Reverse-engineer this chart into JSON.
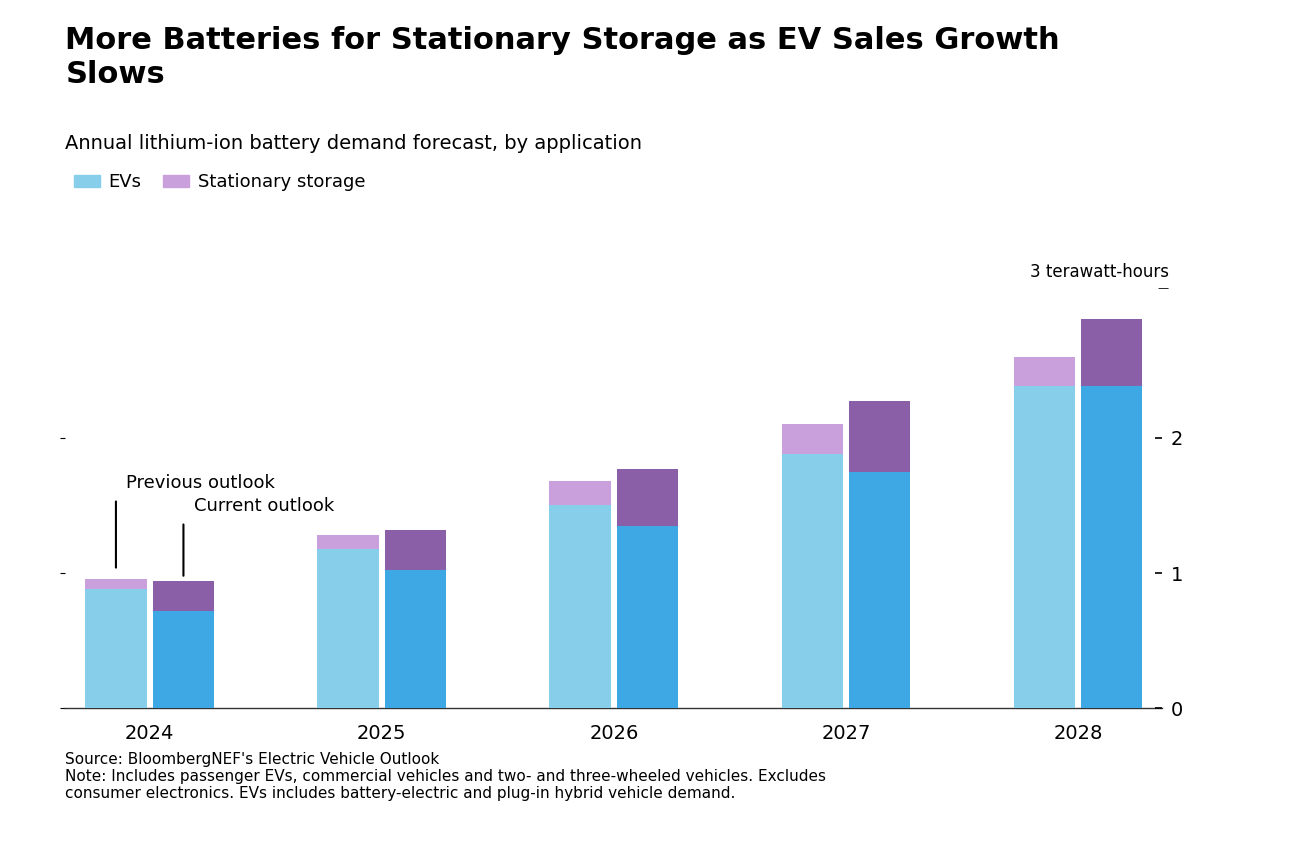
{
  "title_line1": "More Batteries for Stationary Storage as EV Sales Growth",
  "title_line2": "Slows",
  "subtitle": "Annual lithium-ion battery demand forecast, by application",
  "source_text": "Source: BloombergNEF's Electric Vehicle Outlook\nNote: Includes passenger EVs, commercial vehicles and two- and three-wheeled vehicles. Excludes\nconsumer electronics. EVs includes battery-electric and plug-in hybrid vehicle demand.",
  "ylabel_unit": "3 terawatt-hours",
  "legend_labels": [
    "EVs",
    "Stationary storage"
  ],
  "ev_color_prev": "#87CEEB",
  "ev_color_curr": "#3EA8E5",
  "storage_color_prev": "#C9A0DC",
  "storage_color_curr": "#8B5FA8",
  "years": [
    2024,
    2025,
    2026,
    2027,
    2028
  ],
  "bars": [
    {
      "year": 2024,
      "type": "prev",
      "ev": 0.88,
      "storage": 0.08
    },
    {
      "year": 2024,
      "type": "curr",
      "ev": 0.72,
      "storage": 0.22
    },
    {
      "year": 2025,
      "type": "prev",
      "ev": 1.18,
      "storage": 0.1
    },
    {
      "year": 2025,
      "type": "curr",
      "ev": 1.02,
      "storage": 0.3
    },
    {
      "year": 2026,
      "type": "prev",
      "ev": 1.5,
      "storage": 0.18
    },
    {
      "year": 2026,
      "type": "curr",
      "ev": 1.35,
      "storage": 0.42
    },
    {
      "year": 2027,
      "type": "prev",
      "ev": 1.88,
      "storage": 0.22
    },
    {
      "year": 2027,
      "type": "curr",
      "ev": 1.75,
      "storage": 0.52
    },
    {
      "year": 2028,
      "type": "prev",
      "ev": 2.38,
      "storage": 0.22
    },
    {
      "year": 2028,
      "type": "curr",
      "ev": 2.38,
      "storage": 0.5
    }
  ],
  "ylim": [
    0,
    3.0
  ],
  "yticks": [
    0,
    1,
    2
  ],
  "background_color": "#ffffff",
  "annotation_prev": "Previous outlook",
  "annotation_curr": "Current outlook",
  "title_fontsize": 22,
  "subtitle_fontsize": 14,
  "legend_fontsize": 13,
  "tick_fontsize": 14,
  "annot_fontsize": 13,
  "source_fontsize": 11
}
